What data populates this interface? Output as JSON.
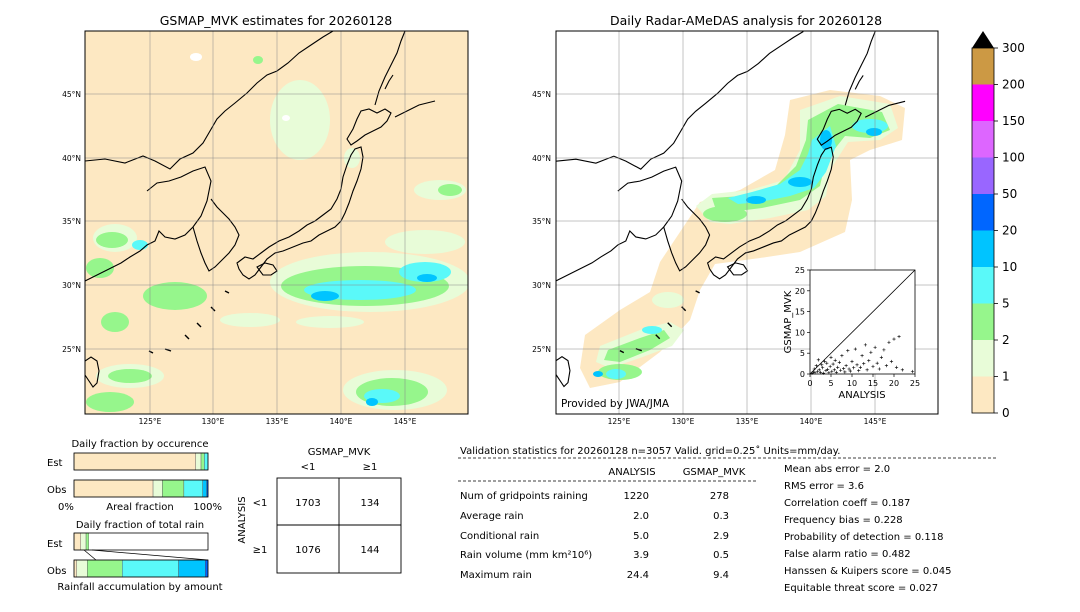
{
  "colors": {
    "land": "#fde8c2",
    "rain_1": "#e8fcd8",
    "rain_2": "#96f68c",
    "rain_5": "#5af9f9",
    "rain_10": "#00c4ff",
    "rain_20": "#0066ff",
    "rain_50": "#9966ff",
    "rain_100": "#dd66ff",
    "rain_150": "#ff00ff",
    "rain_200": "#cc9944",
    "coast": "#000000"
  },
  "map_left": {
    "title": "GSMAP_MVK estimates for 20260128",
    "lon_ticks": [
      "125°E",
      "130°E",
      "135°E",
      "140°E",
      "145°E"
    ],
    "lat_ticks": [
      "45°N",
      "40°N",
      "35°N",
      "30°N",
      "25°N"
    ]
  },
  "map_right": {
    "title": "Daily Radar-AMeDAS analysis for 20260128",
    "lon_ticks": [
      "125°E",
      "130°E",
      "135°E",
      "140°E",
      "145°E"
    ],
    "lat_ticks": [
      "45°N",
      "40°N",
      "35°N",
      "30°N",
      "25°N"
    ],
    "credit": "Provided by JWA/JMA"
  },
  "colorbar": {
    "labels": [
      "0",
      "1",
      "2",
      "5",
      "10",
      "20",
      "50",
      "100",
      "150",
      "200",
      "300"
    ]
  },
  "chart_data": [
    {
      "type": "scatter",
      "name": "inset",
      "xlabel": "ANALYSIS",
      "ylabel": "GSMAP_MVK",
      "xlim": [
        0,
        25
      ],
      "ylim": [
        0,
        25
      ],
      "xticks": [
        "0",
        "5",
        "10",
        "15",
        "20",
        "25"
      ],
      "yticks": [
        "0",
        "5",
        "10",
        "15",
        "20",
        "25"
      ],
      "points": [
        [
          0.5,
          0.2
        ],
        [
          0.8,
          0.5
        ],
        [
          1.0,
          1.2
        ],
        [
          1.2,
          0.3
        ],
        [
          1.5,
          2.0
        ],
        [
          1.8,
          0.6
        ],
        [
          2.0,
          3.4
        ],
        [
          2.2,
          1.0
        ],
        [
          2.5,
          0.4
        ],
        [
          2.8,
          2.2
        ],
        [
          3.0,
          1.5
        ],
        [
          3.2,
          0.2
        ],
        [
          3.5,
          3.0
        ],
        [
          3.8,
          0.8
        ],
        [
          4.0,
          2.6
        ],
        [
          4.2,
          1.1
        ],
        [
          4.5,
          0.3
        ],
        [
          4.8,
          1.8
        ],
        [
          5.0,
          4.0
        ],
        [
          5.2,
          0.6
        ],
        [
          5.5,
          2.4
        ],
        [
          5.8,
          1.0
        ],
        [
          6.0,
          3.3
        ],
        [
          6.3,
          0.4
        ],
        [
          6.6,
          1.6
        ],
        [
          7.0,
          2.8
        ],
        [
          7.3,
          0.9
        ],
        [
          7.6,
          4.4
        ],
        [
          8.0,
          1.3
        ],
        [
          8.3,
          0.5
        ],
        [
          8.6,
          2.0
        ],
        [
          9.0,
          5.6
        ],
        [
          9.3,
          1.2
        ],
        [
          9.6,
          0.7
        ],
        [
          10.0,
          3.0
        ],
        [
          10.4,
          1.5
        ],
        [
          10.8,
          6.0
        ],
        [
          11.2,
          2.2
        ],
        [
          11.6,
          0.8
        ],
        [
          12.0,
          1.6
        ],
        [
          12.4,
          4.4
        ],
        [
          12.8,
          2.5
        ],
        [
          13.2,
          7.0
        ],
        [
          13.6,
          1.0
        ],
        [
          14.0,
          3.2
        ],
        [
          14.5,
          5.2
        ],
        [
          15.0,
          1.8
        ],
        [
          15.5,
          6.4
        ],
        [
          16.0,
          2.6
        ],
        [
          16.5,
          1.2
        ],
        [
          17.0,
          4.0
        ],
        [
          17.6,
          5.8
        ],
        [
          18.2,
          2.0
        ],
        [
          18.8,
          7.6
        ],
        [
          19.4,
          3.0
        ],
        [
          20.0,
          8.4
        ],
        [
          20.6,
          1.6
        ],
        [
          21.2,
          9.0
        ],
        [
          22.0,
          1.0
        ],
        [
          24.4,
          0.6
        ]
      ]
    },
    {
      "type": "bar",
      "name": "occurrence",
      "title": "Daily fraction by occurence",
      "categories": [
        "Est",
        "Obs"
      ],
      "xlabel_left": "0%",
      "xlabel_mid": "Areal fraction",
      "xlabel_right": "100%",
      "series": [
        {
          "color_key": "land",
          "values": [
            0.908,
            0.59
          ]
        },
        {
          "color_key": "rain_1",
          "values": [
            0.04,
            0.07
          ]
        },
        {
          "color_key": "rain_2",
          "values": [
            0.025,
            0.16
          ]
        },
        {
          "color_key": "rain_5",
          "values": [
            0.027,
            0.14
          ]
        },
        {
          "color_key": "rain_10",
          "values": [
            0.0,
            0.03
          ]
        },
        {
          "color_key": "rain_20",
          "values": [
            0.0,
            0.01
          ]
        }
      ]
    },
    {
      "type": "bar",
      "name": "total_rain",
      "title": "Daily fraction of total rain",
      "categories": [
        "Est",
        "Obs"
      ],
      "xlabel_mid": "Rainfall accumulation by amount",
      "series": [
        {
          "color_key": "land",
          "values": [
            0.05,
            0.02
          ]
        },
        {
          "color_key": "rain_1",
          "values": [
            0.04,
            0.08
          ]
        },
        {
          "color_key": "rain_2",
          "values": [
            0.02,
            0.26
          ]
        },
        {
          "color_key": "rain_5",
          "values": [
            0.0,
            0.42
          ]
        },
        {
          "color_key": "rain_10",
          "values": [
            0.0,
            0.2
          ]
        },
        {
          "color_key": "rain_20",
          "values": [
            0.0,
            0.02
          ]
        }
      ]
    }
  ],
  "contingency": {
    "title": "GSMAP_MVK",
    "col_labels": [
      "<1",
      "≥1"
    ],
    "row_labels": [
      "<1",
      "≥1"
    ],
    "row_title": "ANALYSIS",
    "cells": [
      [
        "1703",
        "134"
      ],
      [
        "1076",
        "144"
      ]
    ]
  },
  "validation": {
    "header": "Validation statistics for 20260128  n=3057 Valid. grid=0.25˚ Units=mm/day.",
    "col_analysis": "ANALYSIS",
    "col_gsmap": "GSMAP_MVK",
    "rows": [
      {
        "label": "Num of gridpoints raining",
        "analysis": "1220",
        "gsmap": "278"
      },
      {
        "label": "Average rain",
        "analysis": "2.0",
        "gsmap": "0.3"
      },
      {
        "label": "Conditional rain",
        "analysis": "5.0",
        "gsmap": "2.9"
      },
      {
        "label": "Rain volume (mm km²10⁶)",
        "analysis": "3.9",
        "gsmap": "0.5"
      },
      {
        "label": "Maximum rain",
        "analysis": "24.4",
        "gsmap": "9.4"
      }
    ],
    "scores": [
      "Mean abs error =    2.0",
      "RMS error =    3.6",
      "Correlation coeff =  0.187",
      "Frequency bias =  0.228",
      "Probability of detection =  0.118",
      "False alarm ratio =  0.482",
      "Hanssen & Kuipers score =  0.045",
      "Equitable threat score =  0.027"
    ]
  }
}
